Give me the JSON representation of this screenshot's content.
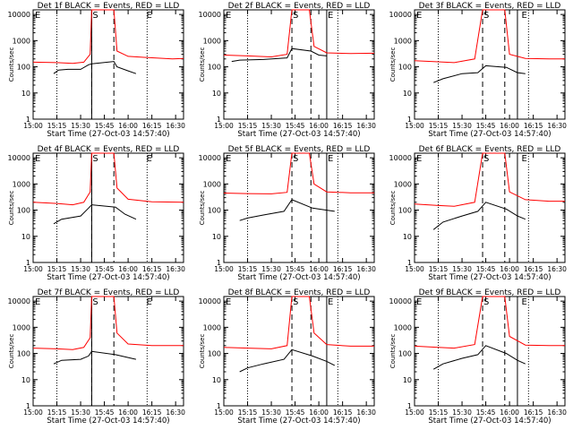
{
  "common": {
    "ylabel": "Counts/sec",
    "xlabel": "Start Time (27-Oct-03 14:57:40)",
    "xticks": [
      "15:00",
      "15:15",
      "15:30",
      "15:45",
      "16:00",
      "16:15",
      "16:30"
    ],
    "yticks": [
      "1",
      "10",
      "100",
      "1000",
      "10000"
    ],
    "marker_labels": {
      "s": "S",
      "e": "E"
    },
    "colors": {
      "events": "#000000",
      "lld": "#ff0000"
    }
  },
  "chart_data": [
    {
      "type": "line",
      "title": "Det 1f BLACK = Events, RED = LLD",
      "xlim": [
        "15:00",
        "16:35"
      ],
      "ylim": [
        1,
        15000
      ],
      "log_y": true,
      "series": [
        {
          "name": "BLACK = Events",
          "points": [
            [
              "15:13",
              55
            ],
            [
              "15:16",
              75
            ],
            [
              "15:22",
              80
            ],
            [
              "15:30",
              80
            ],
            [
              "15:35",
              120
            ],
            [
              "15:37",
              130
            ],
            [
              "15:51",
              160
            ],
            [
              "15:53",
              100
            ],
            [
              "16:00",
              70
            ],
            [
              "16:05",
              55
            ]
          ]
        },
        {
          "name": "RED = LLD",
          "points": [
            [
              "15:00",
              150
            ],
            [
              "15:15",
              145
            ],
            [
              "15:25",
              135
            ],
            [
              "15:32",
              150
            ],
            [
              "15:36",
              300
            ],
            [
              "15:37",
              15000
            ],
            [
              "15:51",
              15000
            ],
            [
              "15:53",
              400
            ],
            [
              "16:00",
              250
            ],
            [
              "16:10",
              230
            ],
            [
              "16:28",
              200
            ],
            [
              "16:35",
              210
            ]
          ]
        }
      ]
    },
    {
      "type": "line",
      "title": "Det 2f BLACK = Events, RED = LLD",
      "xlim": [
        "15:00",
        "16:35"
      ],
      "ylim": [
        1,
        15000
      ],
      "log_y": true,
      "series": [
        {
          "name": "BLACK = Events",
          "points": [
            [
              "15:05",
              160
            ],
            [
              "15:10",
              180
            ],
            [
              "15:25",
              190
            ],
            [
              "15:40",
              220
            ],
            [
              "15:43",
              500
            ],
            [
              "15:55",
              400
            ],
            [
              "16:00",
              280
            ],
            [
              "16:05",
              260
            ]
          ]
        },
        {
          "name": "RED = LLD",
          "points": [
            [
              "15:00",
              280
            ],
            [
              "15:15",
              260
            ],
            [
              "15:30",
              240
            ],
            [
              "15:40",
              300
            ],
            [
              "15:43",
              15000
            ],
            [
              "15:54",
              15000
            ],
            [
              "15:57",
              600
            ],
            [
              "16:05",
              340
            ],
            [
              "16:20",
              320
            ],
            [
              "16:35",
              330
            ]
          ]
        }
      ]
    },
    {
      "type": "line",
      "title": "Det 3f BLACK = Events, RED = LLD",
      "xlim": [
        "15:00",
        "16:35"
      ],
      "ylim": [
        1,
        15000
      ],
      "log_y": true,
      "series": [
        {
          "name": "BLACK = Events",
          "points": [
            [
              "15:12",
              25
            ],
            [
              "15:18",
              35
            ],
            [
              "15:30",
              55
            ],
            [
              "15:40",
              60
            ],
            [
              "15:45",
              110
            ],
            [
              "15:58",
              95
            ],
            [
              "16:05",
              60
            ],
            [
              "16:10",
              55
            ]
          ]
        },
        {
          "name": "RED = LLD",
          "points": [
            [
              "15:00",
              170
            ],
            [
              "15:15",
              155
            ],
            [
              "15:25",
              145
            ],
            [
              "15:38",
              200
            ],
            [
              "15:43",
              15000
            ],
            [
              "15:57",
              15000
            ],
            [
              "16:00",
              300
            ],
            [
              "16:10",
              210
            ],
            [
              "16:25",
              200
            ],
            [
              "16:35",
              200
            ]
          ]
        }
      ]
    },
    {
      "type": "line",
      "title": "Det 4f BLACK = Events, RED = LLD",
      "xlim": [
        "15:00",
        "16:35"
      ],
      "ylim": [
        1,
        15000
      ],
      "log_y": true,
      "series": [
        {
          "name": "BLACK = Events",
          "points": [
            [
              "15:13",
              30
            ],
            [
              "15:18",
              45
            ],
            [
              "15:30",
              60
            ],
            [
              "15:35",
              120
            ],
            [
              "15:37",
              160
            ],
            [
              "15:52",
              130
            ],
            [
              "15:58",
              70
            ],
            [
              "16:05",
              45
            ]
          ]
        },
        {
          "name": "RED = LLD",
          "points": [
            [
              "15:00",
              200
            ],
            [
              "15:15",
              180
            ],
            [
              "15:25",
              160
            ],
            [
              "15:32",
              200
            ],
            [
              "15:36",
              500
            ],
            [
              "15:37",
              15000
            ],
            [
              "15:51",
              15000
            ],
            [
              "15:53",
              700
            ],
            [
              "16:00",
              260
            ],
            [
              "16:15",
              210
            ],
            [
              "16:35",
              200
            ]
          ]
        }
      ]
    },
    {
      "type": "line",
      "title": "Det 5f BLACK = Events, RED = LLD",
      "xlim": [
        "15:00",
        "16:35"
      ],
      "ylim": [
        1,
        15000
      ],
      "log_y": true,
      "series": [
        {
          "name": "BLACK = Events",
          "points": [
            [
              "15:10",
              40
            ],
            [
              "15:15",
              50
            ],
            [
              "15:25",
              65
            ],
            [
              "15:38",
              90
            ],
            [
              "15:43",
              250
            ],
            [
              "15:56",
              120
            ],
            [
              "16:05",
              100
            ],
            [
              "16:10",
              90
            ]
          ]
        },
        {
          "name": "RED = LLD",
          "points": [
            [
              "15:00",
              450
            ],
            [
              "15:15",
              430
            ],
            [
              "15:30",
              420
            ],
            [
              "15:40",
              480
            ],
            [
              "15:43",
              15000
            ],
            [
              "15:54",
              15000
            ],
            [
              "15:57",
              1000
            ],
            [
              "16:05",
              500
            ],
            [
              "16:20",
              460
            ],
            [
              "16:35",
              460
            ]
          ]
        }
      ]
    },
    {
      "type": "line",
      "title": "Det 6f BLACK = Events, RED = LLD",
      "xlim": [
        "15:00",
        "16:35"
      ],
      "ylim": [
        1,
        15000
      ],
      "log_y": true,
      "series": [
        {
          "name": "BLACK = Events",
          "points": [
            [
              "15:12",
              18
            ],
            [
              "15:18",
              35
            ],
            [
              "15:30",
              60
            ],
            [
              "15:40",
              90
            ],
            [
              "15:45",
              200
            ],
            [
              "15:58",
              110
            ],
            [
              "16:05",
              60
            ],
            [
              "16:10",
              45
            ]
          ]
        },
        {
          "name": "RED = LLD",
          "points": [
            [
              "15:00",
              170
            ],
            [
              "15:15",
              150
            ],
            [
              "15:25",
              140
            ],
            [
              "15:38",
              200
            ],
            [
              "15:43",
              15000
            ],
            [
              "15:57",
              15000
            ],
            [
              "16:00",
              500
            ],
            [
              "16:10",
              250
            ],
            [
              "16:25",
              220
            ],
            [
              "16:35",
              220
            ]
          ]
        }
      ]
    },
    {
      "type": "line",
      "title": "Det 7f BLACK = Events, RED = LLD",
      "xlim": [
        "15:00",
        "16:35"
      ],
      "ylim": [
        1,
        15000
      ],
      "log_y": true,
      "series": [
        {
          "name": "BLACK = Events",
          "points": [
            [
              "15:13",
              40
            ],
            [
              "15:18",
              55
            ],
            [
              "15:30",
              60
            ],
            [
              "15:35",
              80
            ],
            [
              "15:37",
              120
            ],
            [
              "15:52",
              90
            ],
            [
              "16:00",
              70
            ],
            [
              "16:05",
              60
            ]
          ]
        },
        {
          "name": "RED = LLD",
          "points": [
            [
              "15:00",
              160
            ],
            [
              "15:15",
              150
            ],
            [
              "15:25",
              140
            ],
            [
              "15:32",
              170
            ],
            [
              "15:36",
              400
            ],
            [
              "15:37",
              15000
            ],
            [
              "15:51",
              15000
            ],
            [
              "15:53",
              600
            ],
            [
              "16:00",
              230
            ],
            [
              "16:15",
              200
            ],
            [
              "16:35",
              200
            ]
          ]
        }
      ]
    },
    {
      "type": "line",
      "title": "Det 8f BLACK = Events, RED = LLD",
      "xlim": [
        "15:00",
        "16:35"
      ],
      "ylim": [
        1,
        15000
      ],
      "log_y": true,
      "series": [
        {
          "name": "BLACK = Events",
          "points": [
            [
              "15:10",
              20
            ],
            [
              "15:15",
              28
            ],
            [
              "15:25",
              40
            ],
            [
              "15:38",
              60
            ],
            [
              "15:43",
              140
            ],
            [
              "15:56",
              80
            ],
            [
              "16:05",
              50
            ],
            [
              "16:10",
              35
            ]
          ]
        },
        {
          "name": "RED = LLD",
          "points": [
            [
              "15:00",
              170
            ],
            [
              "15:15",
              160
            ],
            [
              "15:30",
              150
            ],
            [
              "15:40",
              200
            ],
            [
              "15:43",
              15000
            ],
            [
              "15:54",
              15000
            ],
            [
              "15:57",
              600
            ],
            [
              "16:05",
              220
            ],
            [
              "16:20",
              190
            ],
            [
              "16:35",
              190
            ]
          ]
        }
      ]
    },
    {
      "type": "line",
      "title": "Det 9f BLACK = Events, RED = LLD",
      "xlim": [
        "15:00",
        "16:35"
      ],
      "ylim": [
        1,
        15000
      ],
      "log_y": true,
      "series": [
        {
          "name": "BLACK = Events",
          "points": [
            [
              "15:12",
              25
            ],
            [
              "15:18",
              40
            ],
            [
              "15:30",
              65
            ],
            [
              "15:40",
              90
            ],
            [
              "15:45",
              200
            ],
            [
              "15:58",
              100
            ],
            [
              "16:05",
              55
            ],
            [
              "16:10",
              40
            ]
          ]
        },
        {
          "name": "RED = LLD",
          "points": [
            [
              "15:00",
              190
            ],
            [
              "15:15",
              170
            ],
            [
              "15:25",
              160
            ],
            [
              "15:38",
              220
            ],
            [
              "15:43",
              15000
            ],
            [
              "15:57",
              15000
            ],
            [
              "16:00",
              450
            ],
            [
              "16:10",
              210
            ],
            [
              "16:25",
              200
            ],
            [
              "16:35",
              200
            ]
          ]
        }
      ]
    }
  ]
}
